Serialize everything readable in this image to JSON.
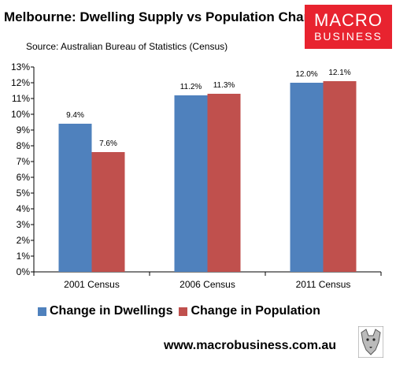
{
  "header": {
    "title": "Melbourne: Dwelling Supply vs Population Change",
    "source": "Source: Australian Bureau of Statistics (Census)",
    "website": "www.macrobusiness.com.au"
  },
  "logo": {
    "line1": "MACRO",
    "line2": "BUSINESS",
    "color": "#e8232f"
  },
  "wolf_icon": "wolf-head-icon",
  "chart_data": {
    "type": "bar",
    "categories": [
      "2001 Census",
      "2006 Census",
      "2011 Census"
    ],
    "series": [
      {
        "name": "Change in Dwellings",
        "values": [
          9.4,
          11.2,
          12.0
        ],
        "labels": [
          "9.4%",
          "11.2%",
          "12.0%"
        ],
        "color": "#4f81bd"
      },
      {
        "name": "Change in Population",
        "values": [
          7.6,
          11.3,
          12.1
        ],
        "labels": [
          "7.6%",
          "11.3%",
          "12.1%"
        ],
        "color": "#c0504d"
      }
    ],
    "title": "Melbourne: Dwelling Supply vs Population Change",
    "ylim": [
      0,
      13
    ],
    "yticks": [
      "0%",
      "1%",
      "2%",
      "3%",
      "4%",
      "5%",
      "6%",
      "7%",
      "8%",
      "9%",
      "10%",
      "11%",
      "12%",
      "13%"
    ],
    "grid": false,
    "legend": "bottom"
  }
}
